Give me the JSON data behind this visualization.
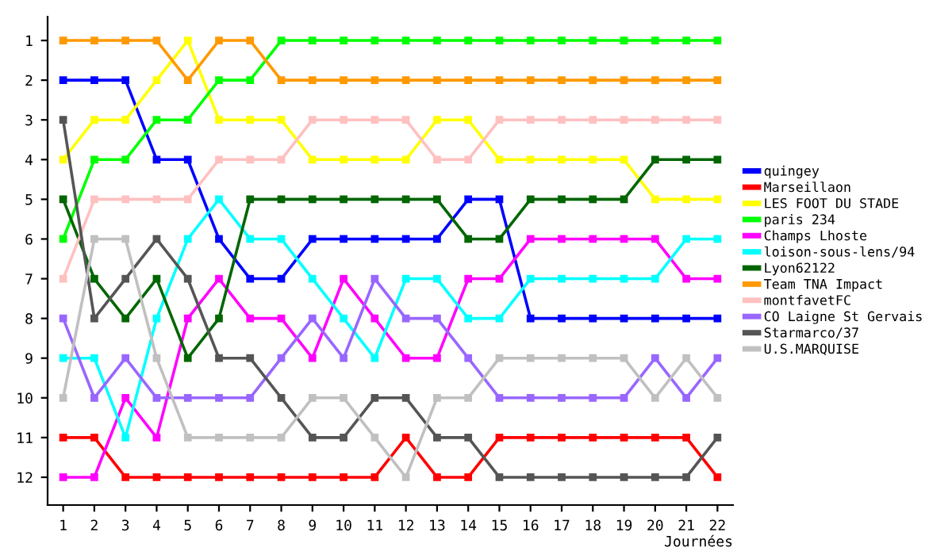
{
  "chart_data": {
    "type": "line",
    "xlabel": "Journées",
    "x": [
      1,
      2,
      3,
      4,
      5,
      6,
      7,
      8,
      9,
      10,
      11,
      12,
      13,
      14,
      15,
      16,
      17,
      18,
      19,
      20,
      21,
      22
    ],
    "xlim": [
      0.5,
      22.5
    ],
    "xticks": [
      1,
      2,
      3,
      4,
      5,
      6,
      7,
      8,
      9,
      10,
      11,
      12,
      13,
      14,
      15,
      16,
      17,
      18,
      19,
      20,
      21,
      22
    ],
    "ylim": [
      12.7,
      0.4
    ],
    "yticks": [
      1,
      2,
      3,
      4,
      5,
      6,
      7,
      8,
      9,
      10,
      11,
      12
    ],
    "grid": false,
    "legend": "right",
    "marker": "square",
    "line_style": "solid",
    "series": [
      {
        "name": "quingey",
        "color": "#0000ff",
        "values": [
          2,
          2,
          2,
          4,
          4,
          6,
          7,
          7,
          6,
          6,
          6,
          6,
          6,
          5,
          5,
          8,
          8,
          8,
          8,
          8,
          8,
          8
        ]
      },
      {
        "name": "Marseillaon",
        "color": "#ff0000",
        "values": [
          11,
          11,
          12,
          12,
          12,
          12,
          12,
          12,
          12,
          12,
          12,
          11,
          12,
          12,
          11,
          11,
          11,
          11,
          11,
          11,
          11,
          12
        ]
      },
      {
        "name": "LES FOOT DU STADE",
        "color": "#ffff00",
        "values": [
          4,
          3,
          3,
          2,
          1,
          3,
          3,
          3,
          4,
          4,
          4,
          4,
          3,
          3,
          4,
          4,
          4,
          4,
          4,
          5,
          5,
          5
        ]
      },
      {
        "name": "paris 234",
        "color": "#00ff00",
        "values": [
          6,
          4,
          4,
          3,
          3,
          2,
          2,
          1,
          1,
          1,
          1,
          1,
          1,
          1,
          1,
          1,
          1,
          1,
          1,
          1,
          1,
          1
        ]
      },
      {
        "name": "Champs Lhoste",
        "color": "#ff00ff",
        "values": [
          12,
          12,
          10,
          11,
          8,
          7,
          8,
          8,
          9,
          7,
          8,
          9,
          9,
          7,
          7,
          6,
          6,
          6,
          6,
          6,
          7,
          7
        ]
      },
      {
        "name": "loison-sous-lens/94",
        "color": "#00ffff",
        "values": [
          9,
          9,
          11,
          8,
          6,
          5,
          6,
          6,
          7,
          8,
          9,
          7,
          7,
          8,
          8,
          7,
          7,
          7,
          7,
          7,
          6,
          6
        ]
      },
      {
        "name": "Lyon62122",
        "color": "#006600",
        "values": [
          5,
          7,
          8,
          7,
          9,
          8,
          5,
          5,
          5,
          5,
          5,
          5,
          5,
          6,
          6,
          5,
          5,
          5,
          5,
          4,
          4,
          4
        ]
      },
      {
        "name": "Team TNA Impact",
        "color": "#ff9900",
        "values": [
          1,
          1,
          1,
          1,
          2,
          1,
          1,
          2,
          2,
          2,
          2,
          2,
          2,
          2,
          2,
          2,
          2,
          2,
          2,
          2,
          2,
          2
        ]
      },
      {
        "name": "montfavetFC",
        "color": "#ffc0c0",
        "values": [
          7,
          5,
          5,
          5,
          5,
          4,
          4,
          4,
          3,
          3,
          3,
          3,
          4,
          4,
          3,
          3,
          3,
          3,
          3,
          3,
          3,
          3
        ]
      },
      {
        "name": "CO Laigne St Gervais",
        "color": "#9966ff",
        "values": [
          8,
          10,
          9,
          10,
          10,
          10,
          10,
          9,
          8,
          9,
          7,
          8,
          8,
          9,
          10,
          10,
          10,
          10,
          10,
          9,
          10,
          9
        ]
      },
      {
        "name": "Starmarco/37",
        "color": "#555555",
        "values": [
          3,
          8,
          7,
          6,
          7,
          9,
          9,
          10,
          11,
          11,
          10,
          10,
          11,
          11,
          12,
          12,
          12,
          12,
          12,
          12,
          12,
          11
        ]
      },
      {
        "name": "U.S.MARQUISE",
        "color": "#c0c0c0",
        "values": [
          10,
          6,
          6,
          9,
          11,
          11,
          11,
          11,
          10,
          10,
          11,
          12,
          10,
          10,
          9,
          9,
          9,
          9,
          9,
          10,
          9,
          10
        ]
      }
    ]
  }
}
